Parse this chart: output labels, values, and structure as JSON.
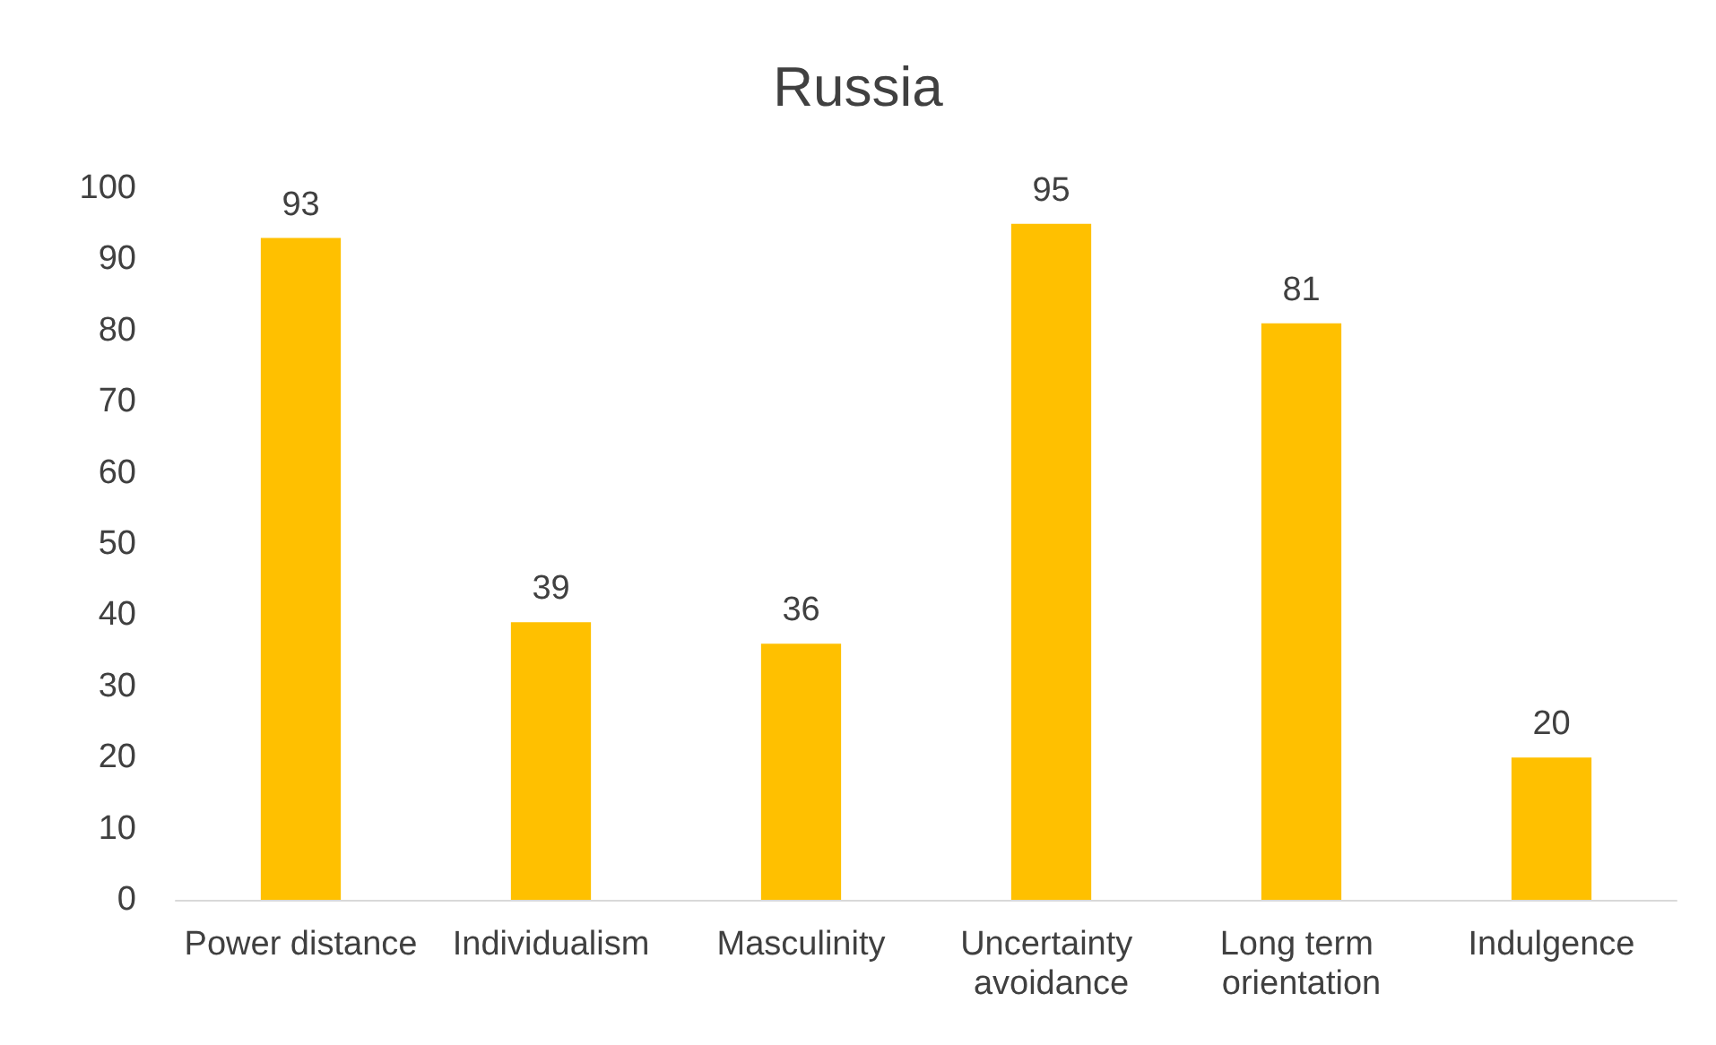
{
  "chart_data": {
    "type": "bar",
    "title": "Russia",
    "categories": [
      "Power distance",
      "Individualism",
      "Masculinity",
      "Uncertainty avoidance",
      "Long term orientation",
      "Indulgence"
    ],
    "values": [
      93,
      39,
      36,
      95,
      81,
      20
    ],
    "color": "#ffc000",
    "ylim": [
      0,
      100
    ],
    "yticks": [
      0,
      10,
      20,
      30,
      40,
      50,
      60,
      70,
      80,
      90,
      100
    ],
    "grid": false,
    "data_labels": true
  }
}
